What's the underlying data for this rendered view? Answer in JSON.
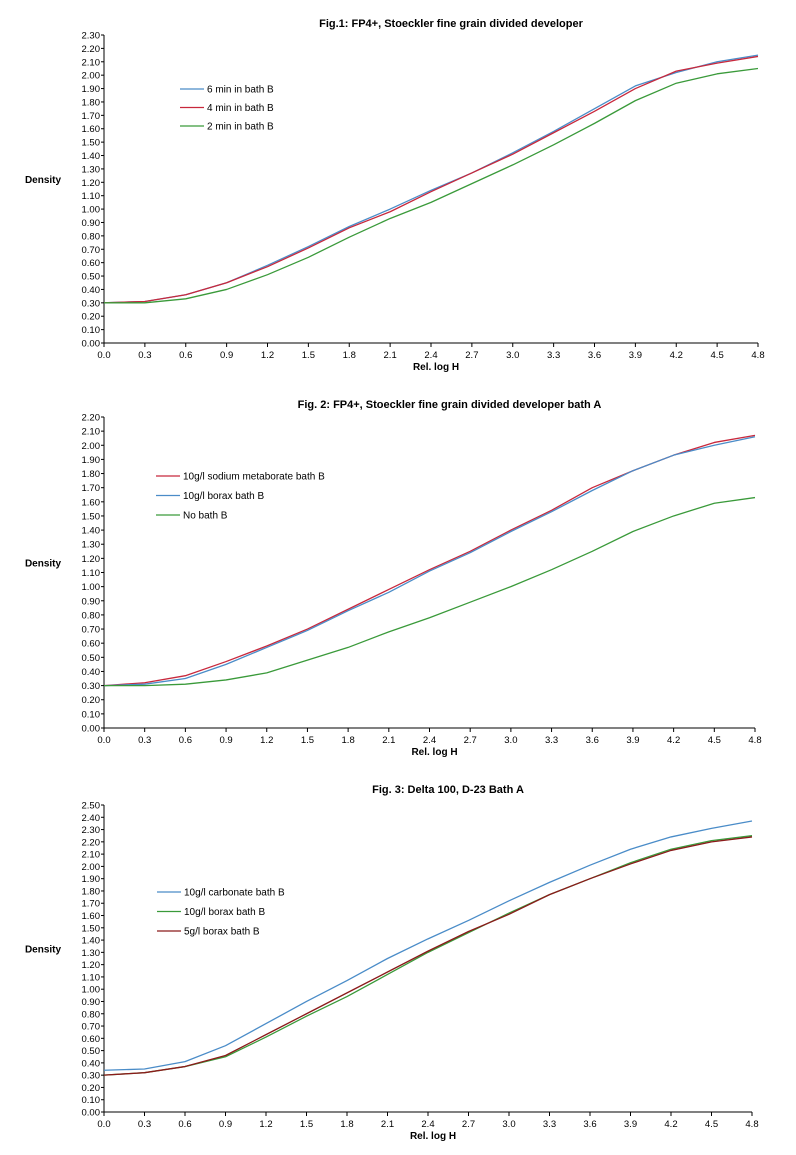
{
  "chart_data": [
    {
      "type": "line",
      "title": "Fig.1: FP4+, Stoeckler fine grain divided developer",
      "xlabel": "Rel. log H",
      "ylabel": "Density",
      "xlim": [
        0.0,
        4.8
      ],
      "ylim": [
        0.0,
        2.3
      ],
      "x": [
        0.0,
        0.3,
        0.6,
        0.9,
        1.2,
        1.5,
        1.8,
        2.1,
        2.4,
        2.7,
        3.0,
        3.3,
        3.6,
        3.9,
        4.2,
        4.5,
        4.8
      ],
      "x_ticks": [
        "0.0",
        "0.3",
        "0.6",
        "0.9",
        "1.2",
        "1.5",
        "1.8",
        "2.1",
        "2.4",
        "2.7",
        "3.0",
        "3.3",
        "3.6",
        "3.9",
        "4.2",
        "4.5",
        "4.8"
      ],
      "y_ticks": [
        "0.00",
        "0.10",
        "0.20",
        "0.30",
        "0.40",
        "0.50",
        "0.60",
        "0.70",
        "0.80",
        "0.90",
        "1.00",
        "1.10",
        "1.20",
        "1.30",
        "1.40",
        "1.50",
        "1.60",
        "1.70",
        "1.80",
        "1.90",
        "2.00",
        "2.10",
        "2.20",
        "2.30"
      ],
      "grid": false,
      "legend_position": "upper-left",
      "series": [
        {
          "name": "6 min in bath B",
          "color": "#4a8cc8",
          "values": [
            0.3,
            0.31,
            0.36,
            0.45,
            0.58,
            0.72,
            0.87,
            1.0,
            1.14,
            1.27,
            1.42,
            1.58,
            1.75,
            1.92,
            2.02,
            2.1,
            2.15
          ]
        },
        {
          "name": "4 min in bath B",
          "color": "#c8283c",
          "values": [
            0.3,
            0.31,
            0.36,
            0.45,
            0.57,
            0.71,
            0.86,
            0.98,
            1.13,
            1.27,
            1.41,
            1.57,
            1.73,
            1.9,
            2.03,
            2.09,
            2.14
          ]
        },
        {
          "name": "2 min in bath B",
          "color": "#3a9a3a",
          "values": [
            0.3,
            0.3,
            0.33,
            0.4,
            0.51,
            0.64,
            0.79,
            0.93,
            1.05,
            1.19,
            1.33,
            1.48,
            1.64,
            1.81,
            1.94,
            2.01,
            2.05
          ]
        }
      ]
    },
    {
      "type": "line",
      "title": "Fig. 2: FP4+, Stoeckler fine grain divided developer bath A",
      "xlabel": "Rel. log H",
      "ylabel": "Density",
      "xlim": [
        0.0,
        4.8
      ],
      "ylim": [
        0.0,
        2.2
      ],
      "x": [
        0.0,
        0.3,
        0.6,
        0.9,
        1.2,
        1.5,
        1.8,
        2.1,
        2.4,
        2.7,
        3.0,
        3.3,
        3.6,
        3.9,
        4.2,
        4.5,
        4.8
      ],
      "x_ticks": [
        "0.0",
        "0.3",
        "0.6",
        "0.9",
        "1.2",
        "1.5",
        "1.8",
        "2.1",
        "2.4",
        "2.7",
        "3.0",
        "3.3",
        "3.6",
        "3.9",
        "4.2",
        "4.5",
        "4.8"
      ],
      "y_ticks": [
        "0.00",
        "0.10",
        "0.20",
        "0.30",
        "0.40",
        "0.50",
        "0.60",
        "0.70",
        "0.80",
        "0.90",
        "1.00",
        "1.10",
        "1.20",
        "1.30",
        "1.40",
        "1.50",
        "1.60",
        "1.70",
        "1.80",
        "1.90",
        "2.00",
        "2.10",
        "2.20"
      ],
      "grid": false,
      "legend_position": "left",
      "series": [
        {
          "name": "10g/l sodium metaborate bath B",
          "color": "#c8283c",
          "values": [
            0.3,
            0.32,
            0.37,
            0.47,
            0.58,
            0.7,
            0.84,
            0.98,
            1.12,
            1.25,
            1.4,
            1.54,
            1.7,
            1.82,
            1.93,
            2.02,
            2.07
          ]
        },
        {
          "name": "10g/l borax bath B",
          "color": "#4a8cc8",
          "values": [
            0.3,
            0.31,
            0.35,
            0.45,
            0.57,
            0.69,
            0.83,
            0.96,
            1.11,
            1.24,
            1.39,
            1.53,
            1.68,
            1.82,
            1.93,
            2.0,
            2.06
          ]
        },
        {
          "name": "No bath B",
          "color": "#3a9a3a",
          "values": [
            0.3,
            0.3,
            0.31,
            0.34,
            0.39,
            0.48,
            0.57,
            0.68,
            0.78,
            0.89,
            1.0,
            1.12,
            1.25,
            1.39,
            1.5,
            1.59,
            1.63
          ]
        }
      ]
    },
    {
      "type": "line",
      "title": "Fig. 3: Delta 100, D-23 Bath A",
      "xlabel": "Rel. log H",
      "ylabel": "Density",
      "xlim": [
        0.0,
        4.8
      ],
      "ylim": [
        0.0,
        2.5
      ],
      "x": [
        0.0,
        0.3,
        0.6,
        0.9,
        1.2,
        1.5,
        1.8,
        2.1,
        2.4,
        2.7,
        3.0,
        3.3,
        3.6,
        3.9,
        4.2,
        4.5,
        4.8
      ],
      "x_ticks": [
        "0.0",
        "0.3",
        "0.6",
        "0.9",
        "1.2",
        "1.5",
        "1.8",
        "2.1",
        "2.4",
        "2.7",
        "3.0",
        "3.3",
        "3.6",
        "3.9",
        "4.2",
        "4.5",
        "4.8"
      ],
      "y_ticks": [
        "0.00",
        "0.10",
        "0.20",
        "0.30",
        "0.40",
        "0.50",
        "0.60",
        "0.70",
        "0.80",
        "0.90",
        "1.00",
        "1.10",
        "1.20",
        "1.30",
        "1.40",
        "1.50",
        "1.60",
        "1.70",
        "1.80",
        "1.90",
        "2.00",
        "2.10",
        "2.20",
        "2.30",
        "2.40",
        "2.50"
      ],
      "grid": false,
      "legend_position": "left",
      "series": [
        {
          "name": "10g/l carbonate bath B",
          "color": "#4a8cc8",
          "values": [
            0.34,
            0.35,
            0.41,
            0.54,
            0.72,
            0.9,
            1.07,
            1.25,
            1.41,
            1.56,
            1.72,
            1.87,
            2.01,
            2.14,
            2.24,
            2.31,
            2.37
          ]
        },
        {
          "name": "10g/l borax bath B",
          "color": "#3a9a3a",
          "values": [
            0.3,
            0.32,
            0.37,
            0.45,
            0.61,
            0.78,
            0.94,
            1.12,
            1.3,
            1.46,
            1.62,
            1.77,
            1.9,
            2.03,
            2.14,
            2.21,
            2.25
          ]
        },
        {
          "name": "5g/l borax bath B",
          "color": "#8b1a1a",
          "values": [
            0.3,
            0.32,
            0.37,
            0.46,
            0.63,
            0.8,
            0.97,
            1.14,
            1.31,
            1.47,
            1.61,
            1.77,
            1.9,
            2.02,
            2.13,
            2.2,
            2.24
          ]
        }
      ]
    }
  ]
}
